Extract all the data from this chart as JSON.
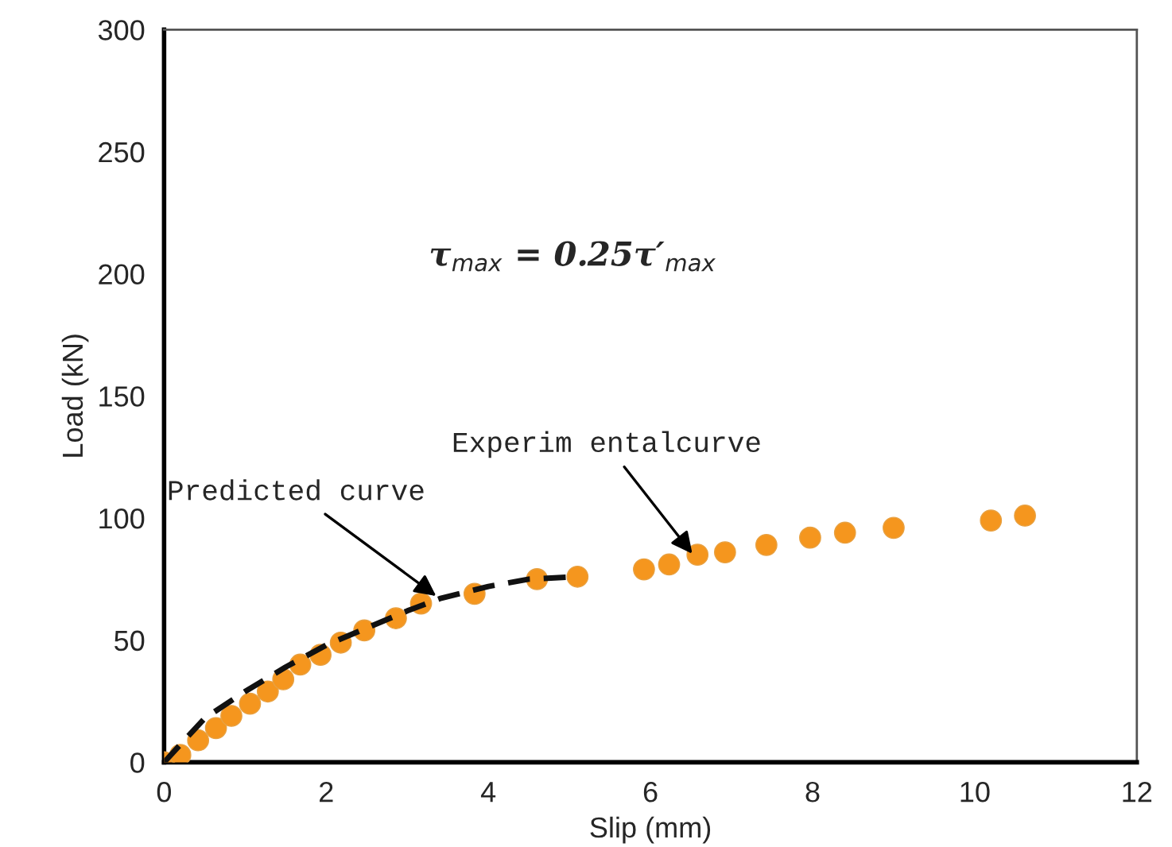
{
  "chart_data": {
    "type": "scatter",
    "xlabel": "Slip (mm)",
    "ylabel": "Load (kN)",
    "xlim": [
      0,
      12
    ],
    "ylim": [
      0,
      300
    ],
    "xticks": [
      0,
      2,
      4,
      6,
      8,
      10,
      12
    ],
    "yticks": [
      0,
      50,
      100,
      150,
      200,
      250,
      300
    ],
    "grid": false,
    "series": [
      {
        "marker": "circle",
        "color": "#f5961e",
        "x": [
          0,
          0.2,
          0.42,
          0.64,
          0.83,
          1.06,
          1.28,
          1.47,
          1.68,
          1.93,
          2.18,
          2.47,
          2.86,
          3.17,
          3.83,
          4.6,
          5.1,
          5.92,
          6.23,
          6.58,
          6.92,
          7.43,
          7.97,
          8.4,
          9.0,
          10.2,
          10.62
        ],
        "values": [
          0,
          3,
          9,
          14,
          19,
          24,
          29,
          34,
          40,
          44,
          49,
          54,
          59,
          65,
          69,
          75,
          76,
          79,
          81,
          85,
          86,
          89,
          92,
          94,
          96,
          99,
          101
        ]
      },
      {
        "type": "line",
        "line_style": "dashed",
        "color": "#111111",
        "x": [
          0,
          0.5,
          1,
          1.5,
          2,
          2.5,
          3,
          3.4,
          4,
          4.5,
          5.1
        ],
        "values": [
          0,
          18,
          29,
          39,
          48,
          55,
          62,
          67,
          72,
          75,
          76
        ]
      }
    ],
    "annotations": [
      "τ$_{max}$ = 0.25τ′$_{max}$",
      {
        "text": "Predicted curve",
        "x": 3.4,
        "y": 67
      },
      {
        "text": "Experim entalcurve",
        "x": 6.55,
        "y": 84
      }
    ]
  }
}
